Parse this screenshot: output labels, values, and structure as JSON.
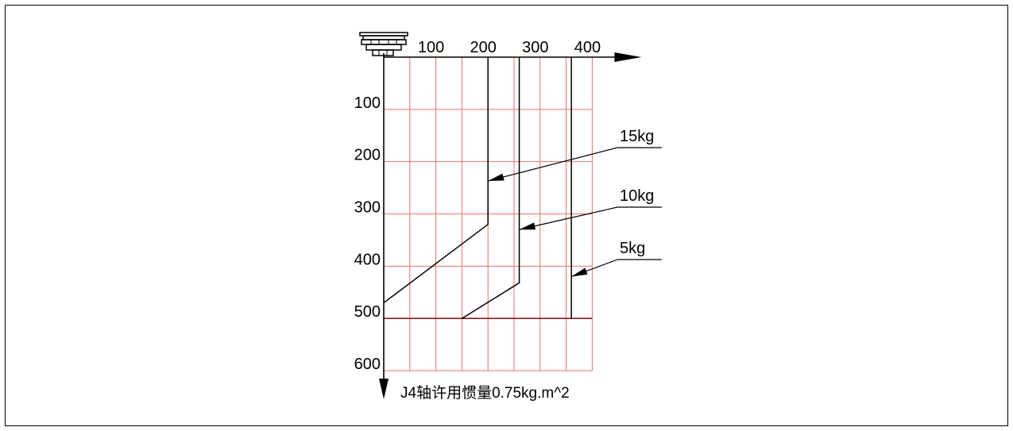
{
  "chart_data": {
    "type": "line",
    "x_axis": {
      "range": [
        0,
        400
      ],
      "ticks": [
        100,
        200,
        300,
        400
      ],
      "direction": "right"
    },
    "y_axis": {
      "range": [
        0,
        600
      ],
      "ticks": [
        100,
        200,
        300,
        400,
        500,
        600
      ],
      "direction": "down"
    },
    "grid": true,
    "grid_color": "#e8726f",
    "series": [
      {
        "name": "15kg",
        "points": [
          [
            0,
            470
          ],
          [
            200,
            320
          ],
          [
            200,
            0
          ]
        ]
      },
      {
        "name": "10kg",
        "points": [
          [
            150,
            500
          ],
          [
            260,
            432
          ],
          [
            260,
            0
          ]
        ]
      },
      {
        "name": "5kg",
        "points": [
          [
            360,
            500
          ],
          [
            360,
            0
          ]
        ]
      }
    ],
    "boundary_line": {
      "y": 500,
      "x_range": [
        0,
        400
      ]
    },
    "annotation": "J4轴许用惯量0.75kg.m^2",
    "mount_icon": "robot-flange-icon"
  }
}
